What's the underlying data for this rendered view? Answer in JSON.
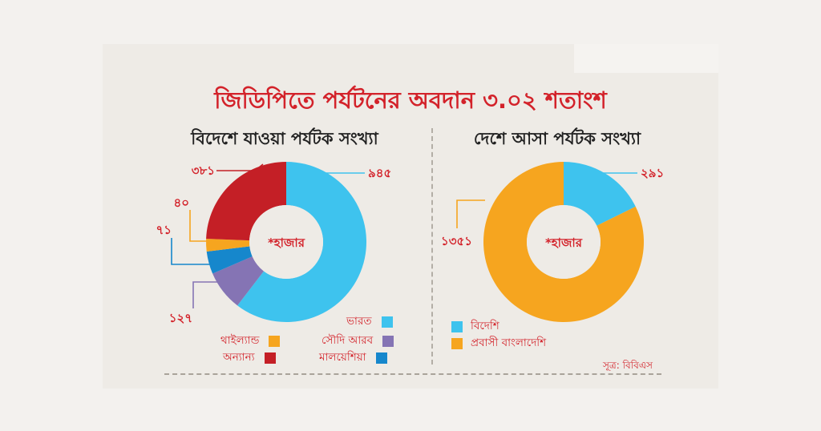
{
  "title": "জিডিপিতে পর্যটনের অবদান ৩.০২ শতাংশ",
  "source": "সূত্র: বিবিএস",
  "chart_data": [
    {
      "type": "pie",
      "title": "বিদেশে যাওয়া পর্যটক সংখ্যা",
      "center_label": "*হাজার",
      "slices": [
        {
          "label": "ভারত",
          "value": 945,
          "value_label": "৯৪৫",
          "color": "#3ec3ee"
        },
        {
          "label": "সৌদি আরব",
          "value": 127,
          "value_label": "১২৭",
          "color": "#8574b4"
        },
        {
          "label": "মালয়েশিয়া",
          "value": 71,
          "value_label": "৭১",
          "color": "#1687cc"
        },
        {
          "label": "থাইল্যান্ড",
          "value": 40,
          "value_label": "৪০",
          "color": "#f6a51f"
        },
        {
          "label": "অন্যান্য",
          "value": 381,
          "value_label": "৩৮১",
          "color": "#c41f26"
        }
      ]
    },
    {
      "type": "pie",
      "title": "দেশে আসা পর্যটক সংখ্যা",
      "center_label": "*হাজার",
      "slices": [
        {
          "label": "বিদেশি",
          "value": 291,
          "value_label": "২৯১",
          "color": "#3ec3ee"
        },
        {
          "label": "প্রবাসী বাংলাদেশি",
          "value": 1351,
          "value_label": "১৩৫১",
          "color": "#f6a51f"
        }
      ]
    }
  ]
}
